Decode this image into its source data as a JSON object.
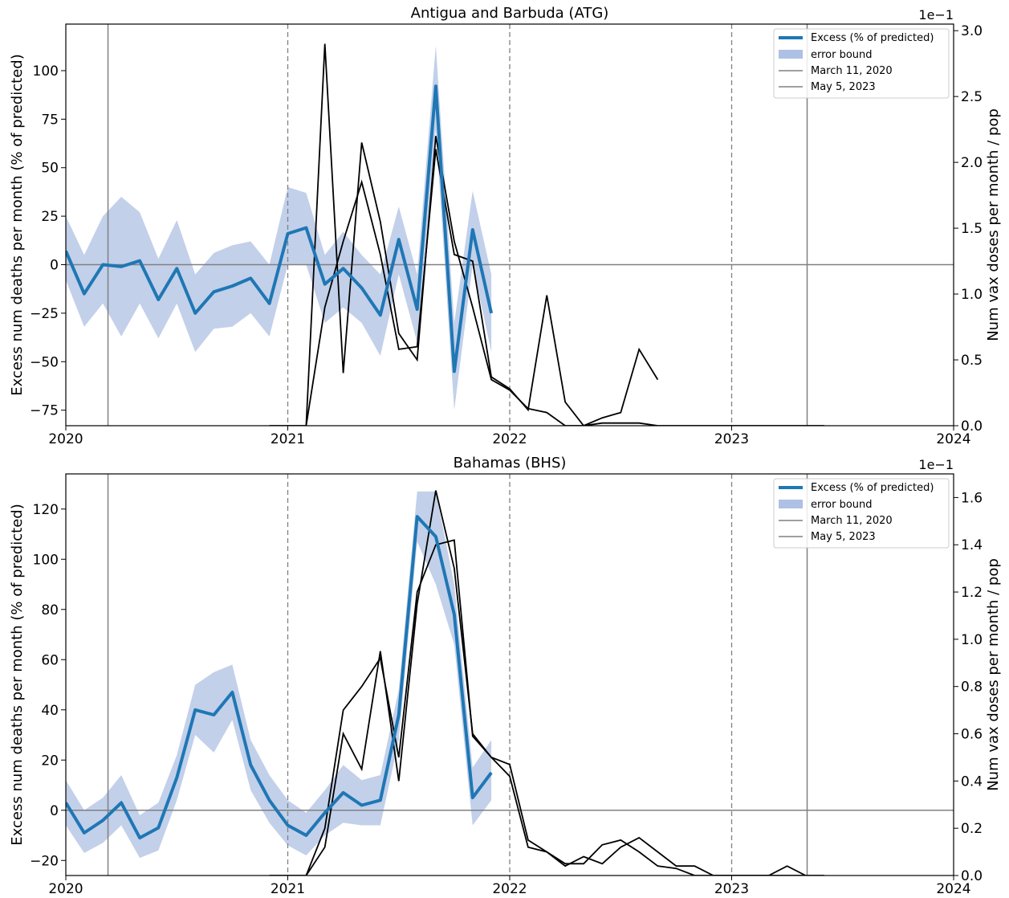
{
  "chart_data": [
    {
      "type": "line",
      "title": "Antigua and Barbuda (ATG)",
      "ylabel": "Excess num deaths per month (% of predicted)",
      "y2label": "Num vax doses per month / pop",
      "y2_offset_text": "1e−1",
      "xlim": [
        2020,
        2024
      ],
      "ylim": [
        -83,
        124
      ],
      "y2lim": [
        0,
        3.05
      ],
      "x_ticks": [
        2020,
        2021,
        2022,
        2023,
        2024
      ],
      "x_tick_labels": [
        "2020",
        "2021",
        "2022",
        "2023",
        "2024"
      ],
      "y_ticks": [
        -75,
        -50,
        -25,
        0,
        25,
        50,
        75,
        100
      ],
      "y_tick_labels": [
        "−75",
        "−50",
        "−25",
        "0",
        "25",
        "50",
        "75",
        "100"
      ],
      "y2_ticks": [
        0,
        0.5,
        1.0,
        1.5,
        2.0,
        2.5,
        3.0
      ],
      "y2_tick_labels": [
        "0.0",
        "0.5",
        "1.0",
        "1.5",
        "2.0",
        "2.5",
        "3.0"
      ],
      "vlines": {
        "march_2020": 2020.19,
        "may_2023": 2023.34,
        "year_dashed": [
          2021,
          2022,
          2023
        ]
      },
      "hline": 0,
      "legend": {
        "position": "top-right",
        "entries": [
          "Excess (% of predicted)",
          "error bound",
          "March 11, 2020",
          "May 5, 2023"
        ]
      },
      "colors": {
        "excess": "#1f77b4",
        "error_band": "#aec0e3",
        "vax": "#000000",
        "reference": "#808080"
      },
      "series": [
        {
          "name": "Excess (% of predicted)",
          "x": [
            2020.0,
            2020.083,
            2020.167,
            2020.25,
            2020.333,
            2020.417,
            2020.5,
            2020.583,
            2020.667,
            2020.75,
            2020.833,
            2020.917,
            2021.0,
            2021.083,
            2021.167,
            2021.25,
            2021.333,
            2021.417,
            2021.5,
            2021.583,
            2021.667,
            2021.75,
            2021.833,
            2021.917
          ],
          "values": [
            7,
            -15,
            0,
            -1,
            2,
            -18,
            -2,
            -25,
            -14,
            -11,
            -7,
            -20,
            16,
            19,
            -10,
            -2,
            -12,
            -26,
            13,
            -23,
            92,
            -55,
            18,
            -25
          ],
          "upper": [
            25,
            5,
            25,
            35,
            27,
            3,
            23,
            -5,
            6,
            10,
            12,
            0,
            40,
            37,
            5,
            17,
            5,
            -5,
            30,
            -5,
            113,
            -30,
            38,
            -5
          ],
          "lower": [
            -8,
            -32,
            -20,
            -37,
            -20,
            -38,
            -20,
            -45,
            -33,
            -32,
            -25,
            -37,
            0,
            0,
            -30,
            -22,
            -30,
            -47,
            -5,
            -40,
            70,
            -75,
            0,
            -45
          ]
        },
        {
          "name": "",
          "x": [
            2020.917,
            2021.083,
            2021.167,
            2021.25,
            2021.333,
            2021.417,
            2021.5,
            2021.583,
            2021.667,
            2021.75,
            2021.833,
            2021.917,
            2022.0,
            2022.083,
            2022.167,
            2022.25,
            2022.333,
            2022.417,
            2022.5,
            2022.583,
            2022.667,
            2022.75,
            2022.833,
            2022.917,
            2023.0,
            2023.083,
            2023.167,
            2023.25,
            2023.333,
            2023.417
          ],
          "values": [
            0,
            0,
            2.9,
            0.4,
            2.15,
            1.55,
            0.7,
            0.5,
            2.2,
            1.4,
            0.9,
            0.35,
            0.27,
            0.13,
            0.1,
            0.0,
            0.0,
            0.02,
            0.02,
            0.02,
            0.0,
            0.0,
            0.0,
            0.0,
            0.0,
            0.0,
            0.0,
            0.0,
            0.0,
            0.0
          ]
        },
        {
          "name": "",
          "x": [
            2021.083,
            2021.167,
            2021.25,
            2021.333,
            2021.417,
            2021.5,
            2021.583,
            2021.667,
            2021.75,
            2021.833,
            2021.917,
            2022.0,
            2022.083,
            2022.167,
            2022.25,
            2022.333,
            2022.417,
            2022.5,
            2022.583,
            2022.667
          ],
          "values": [
            0,
            0.9,
            1.4,
            1.85,
            1.3,
            0.58,
            0.6,
            2.1,
            1.3,
            1.25,
            0.37,
            0.28,
            0.12,
            0.99,
            0.18,
            0.0,
            0.06,
            0.1,
            0.58,
            0.35
          ]
        }
      ]
    },
    {
      "type": "line",
      "title": "Bahamas (BHS)",
      "ylabel": "Excess num deaths per month (% of predicted)",
      "y2label": "Num vax doses per month / pop",
      "y2_offset_text": "1e−1",
      "xlim": [
        2020,
        2024
      ],
      "ylim": [
        -26,
        134
      ],
      "y2lim": [
        0,
        1.7
      ],
      "x_ticks": [
        2020,
        2021,
        2022,
        2023,
        2024
      ],
      "x_tick_labels": [
        "2020",
        "2021",
        "2022",
        "2023",
        "2024"
      ],
      "y_ticks": [
        -20,
        0,
        20,
        40,
        60,
        80,
        100,
        120
      ],
      "y_tick_labels": [
        "−20",
        "0",
        "20",
        "40",
        "60",
        "80",
        "100",
        "120"
      ],
      "y2_ticks": [
        0,
        0.2,
        0.4,
        0.6,
        0.8,
        1.0,
        1.2,
        1.4,
        1.6
      ],
      "y2_tick_labels": [
        "0.0",
        "0.2",
        "0.4",
        "0.6",
        "0.8",
        "1.0",
        "1.2",
        "1.4",
        "1.6"
      ],
      "vlines": {
        "march_2020": 2020.19,
        "may_2023": 2023.34,
        "year_dashed": [
          2021,
          2022,
          2023
        ]
      },
      "hline": 0,
      "legend": {
        "position": "top-right",
        "entries": [
          "Excess (% of predicted)",
          "error bound",
          "March 11, 2020",
          "May 5, 2023"
        ]
      },
      "colors": {
        "excess": "#1f77b4",
        "error_band": "#aec0e3",
        "vax": "#000000",
        "reference": "#808080"
      },
      "series": [
        {
          "name": "Excess (% of predicted)",
          "x": [
            2020.0,
            2020.083,
            2020.167,
            2020.25,
            2020.333,
            2020.417,
            2020.5,
            2020.583,
            2020.667,
            2020.75,
            2020.833,
            2020.917,
            2021.0,
            2021.083,
            2021.167,
            2021.25,
            2021.333,
            2021.417,
            2021.5,
            2021.583,
            2021.667,
            2021.75,
            2021.833,
            2021.917
          ],
          "values": [
            3,
            -9,
            -4,
            3,
            -11,
            -7,
            13,
            40,
            38,
            47,
            18,
            4,
            -6,
            -10,
            -1,
            7,
            2,
            4,
            38,
            117,
            109,
            78,
            5,
            15
          ],
          "upper": [
            12,
            0,
            5,
            14,
            -2,
            3,
            22,
            50,
            55,
            58,
            28,
            14,
            4,
            -1,
            8,
            18,
            12,
            14,
            48,
            127,
            127,
            90,
            17,
            28
          ],
          "lower": [
            -6,
            -17,
            -13,
            -6,
            -19,
            -16,
            4,
            30,
            23,
            36,
            8,
            -5,
            -14,
            -18,
            -10,
            -5,
            -6,
            -6,
            28,
            107,
            90,
            66,
            -6,
            4
          ]
        },
        {
          "name": "",
          "x": [
            2020.917,
            2021.083,
            2021.167,
            2021.25,
            2021.333,
            2021.417,
            2021.5,
            2021.583,
            2021.667,
            2021.75,
            2021.833,
            2021.917,
            2022.0,
            2022.083,
            2022.167,
            2022.25,
            2022.333,
            2022.417,
            2022.5,
            2022.583,
            2022.667,
            2022.75,
            2022.833,
            2022.917,
            2023.0,
            2023.083,
            2023.167,
            2023.25,
            2023.333,
            2023.417
          ],
          "values": [
            0,
            0,
            0.12,
            0.6,
            0.45,
            0.95,
            0.4,
            1.15,
            1.63,
            1.3,
            0.6,
            0.5,
            0.47,
            0.15,
            0.1,
            0.05,
            0.05,
            0.13,
            0.15,
            0.1,
            0.04,
            0.03,
            0.0,
            0.0,
            0.0,
            0.0,
            0.0,
            0.0,
            0.0,
            0.0
          ]
        },
        {
          "name": "",
          "x": [
            2021.083,
            2021.167,
            2021.25,
            2021.333,
            2021.417,
            2021.5,
            2021.583,
            2021.667,
            2021.75,
            2021.833,
            2021.917,
            2022.0,
            2022.083,
            2022.167,
            2022.25,
            2022.333,
            2022.417,
            2022.5,
            2022.583,
            2022.667,
            2022.75,
            2022.833,
            2022.917,
            2023.0,
            2023.083,
            2023.167,
            2023.25,
            2023.333
          ],
          "values": [
            0,
            0.2,
            0.7,
            0.8,
            0.92,
            0.5,
            1.2,
            1.4,
            1.42,
            0.59,
            0.5,
            0.42,
            0.12,
            0.1,
            0.04,
            0.08,
            0.05,
            0.12,
            0.16,
            0.1,
            0.04,
            0.04,
            0.0,
            0.0,
            0.0,
            0.0,
            0.04,
            0.0
          ]
        }
      ]
    }
  ]
}
